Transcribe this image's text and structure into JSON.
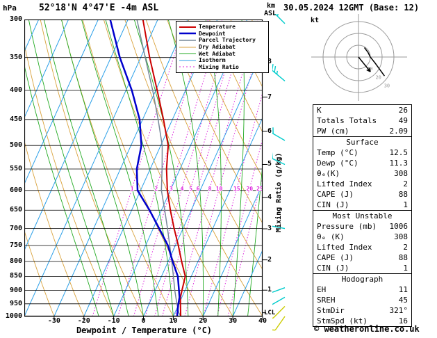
{
  "header": {
    "pressure_unit": "hPa",
    "station": "52°18'N 4°47'E -4m ASL",
    "datetime": "30.05.2024 12GMT (Base: 12)",
    "altitude_unit_line1": "km",
    "altitude_unit_line2": "ASL",
    "hodograph_unit": "kt",
    "copyright": "© weatheronline.co.uk"
  },
  "axes": {
    "xlabel": "Dewpoint / Temperature (°C)",
    "right_label": "Mixing Ratio (g/kg)",
    "pressure_ticks": [
      300,
      350,
      400,
      450,
      500,
      550,
      600,
      650,
      700,
      750,
      800,
      850,
      900,
      950,
      1000
    ],
    "temp_ticks": [
      -30,
      -20,
      -10,
      0,
      10,
      20,
      30,
      40
    ],
    "km_ticks": [
      {
        "km": 8,
        "p": 356
      },
      {
        "km": 7,
        "p": 411
      },
      {
        "km": 6,
        "p": 472
      },
      {
        "km": 5,
        "p": 540
      },
      {
        "km": 4,
        "p": 617
      },
      {
        "km": 3,
        "p": 701
      },
      {
        "km": 2,
        "p": 795
      },
      {
        "km": 1,
        "p": 899
      }
    ],
    "lcl_label": "LCL",
    "lcl_pressure": 985
  },
  "legend": [
    {
      "label": "Temperature",
      "color": "#cc0000",
      "width": 2,
      "dash": ""
    },
    {
      "label": "Dewpoint",
      "color": "#0000cc",
      "width": 2.5,
      "dash": ""
    },
    {
      "label": "Parcel Trajectory",
      "color": "#778899",
      "width": 1.5,
      "dash": ""
    },
    {
      "label": "Dry Adiabat",
      "color": "#d9a23c",
      "width": 1,
      "dash": ""
    },
    {
      "label": "Wet Adiabat",
      "color": "#22aa22",
      "width": 1,
      "dash": ""
    },
    {
      "label": "Isotherm",
      "color": "#2a9fe8",
      "width": 1,
      "dash": ""
    },
    {
      "label": "Mixing Ratio",
      "color": "#dd22dd",
      "width": 1,
      "dash": "2 3"
    }
  ],
  "chart_data": {
    "type": "skewt-logp",
    "station": "52°18'N 4°47'E -4m ASL",
    "valid": "30.05.2024 12GMT (Base: 12)",
    "pressure_axis_hpa": [
      300,
      1000
    ],
    "temp_axis_c": [
      -40,
      40
    ],
    "temperature_profile": [
      {
        "p": 1000,
        "t": 12.5
      },
      {
        "p": 950,
        "t": 10.5
      },
      {
        "p": 925,
        "t": 9.5
      },
      {
        "p": 900,
        "t": 9.0
      },
      {
        "p": 850,
        "t": 8.0
      },
      {
        "p": 800,
        "t": 4.5
      },
      {
        "p": 750,
        "t": 1.0
      },
      {
        "p": 700,
        "t": -3.0
      },
      {
        "p": 650,
        "t": -7.0
      },
      {
        "p": 600,
        "t": -11.0
      },
      {
        "p": 550,
        "t": -14.5
      },
      {
        "p": 500,
        "t": -17.5
      },
      {
        "p": 450,
        "t": -23.0
      },
      {
        "p": 400,
        "t": -29.5
      },
      {
        "p": 350,
        "t": -37.0
      },
      {
        "p": 300,
        "t": -45.0
      }
    ],
    "dewpoint_profile": [
      {
        "p": 1000,
        "t": 11.3
      },
      {
        "p": 950,
        "t": 9.8
      },
      {
        "p": 925,
        "t": 9.2
      },
      {
        "p": 900,
        "t": 8.0
      },
      {
        "p": 850,
        "t": 5.5
      },
      {
        "p": 800,
        "t": 1.5
      },
      {
        "p": 750,
        "t": -2.5
      },
      {
        "p": 700,
        "t": -8.0
      },
      {
        "p": 650,
        "t": -14.0
      },
      {
        "p": 600,
        "t": -21.0
      },
      {
        "p": 550,
        "t": -24.5
      },
      {
        "p": 500,
        "t": -26.5
      },
      {
        "p": 450,
        "t": -31.0
      },
      {
        "p": 400,
        "t": -38.0
      },
      {
        "p": 350,
        "t": -47.0
      },
      {
        "p": 300,
        "t": -56.0
      }
    ],
    "parcel_profile": [
      {
        "p": 1000,
        "t": 12.5
      },
      {
        "p": 985,
        "t": 11.3
      },
      {
        "p": 950,
        "t": 9.3
      },
      {
        "p": 900,
        "t": 6.6
      },
      {
        "p": 850,
        "t": 4.0
      },
      {
        "p": 800,
        "t": 1.2
      },
      {
        "p": 750,
        "t": -1.9
      },
      {
        "p": 700,
        "t": -5.2
      },
      {
        "p": 650,
        "t": -8.9
      },
      {
        "p": 600,
        "t": -13.0
      },
      {
        "p": 550,
        "t": -16.0
      },
      {
        "p": 500,
        "t": -19.5
      },
      {
        "p": 450,
        "t": -24.8
      },
      {
        "p": 400,
        "t": -31.0
      },
      {
        "p": 350,
        "t": -38.5
      },
      {
        "p": 300,
        "t": -47.0
      }
    ],
    "isotherms_c": [
      -120,
      -110,
      -100,
      -90,
      -80,
      -70,
      -60,
      -50,
      -40,
      -30,
      -20,
      -10,
      0,
      10,
      20,
      30,
      40
    ],
    "dry_adiabats_theta_c": [
      -40,
      -30,
      -20,
      -10,
      0,
      10,
      20,
      30,
      40,
      50,
      60,
      70,
      80,
      90,
      100,
      110
    ],
    "wet_adiabats_tw_c": [
      -15,
      -10,
      -5,
      0,
      5,
      10,
      15,
      20,
      25,
      30,
      35
    ],
    "mixing_ratio_lines_gkg": [
      1,
      2,
      3,
      4,
      5,
      6,
      8,
      10,
      15,
      20,
      25
    ],
    "mixing_ratio_label_pressure": 595,
    "wind_barbs": [
      {
        "p": 305,
        "dir": 315,
        "kt": 30,
        "color": "#00cccc"
      },
      {
        "p": 385,
        "dir": 310,
        "kt": 25,
        "color": "#00cccc"
      },
      {
        "p": 490,
        "dir": 300,
        "kt": 20,
        "color": "#00cccc"
      },
      {
        "p": 540,
        "dir": 295,
        "kt": 20,
        "color": "#00cccc"
      },
      {
        "p": 700,
        "dir": 280,
        "kt": 15,
        "color": "#00cccc"
      },
      {
        "p": 890,
        "dir": 250,
        "kt": 10,
        "color": "#00cccc"
      },
      {
        "p": 925,
        "dir": 240,
        "kt": 10,
        "color": "#00cccc"
      },
      {
        "p": 960,
        "dir": 225,
        "kt": 10,
        "color": "#cccc00"
      },
      {
        "p": 1000,
        "dir": 215,
        "kt": 10,
        "color": "#cccc00"
      }
    ],
    "hodograph": {
      "rings_kt": [
        10,
        20,
        30
      ],
      "trace": [
        {
          "u": 5,
          "v": 8
        },
        {
          "u": 8,
          "v": 4
        },
        {
          "u": 10,
          "v": 0
        },
        {
          "u": 14,
          "v": -5
        },
        {
          "u": 22,
          "v": -16
        }
      ],
      "storm_motion": {
        "dir_deg": 321,
        "speed_kt": 16
      }
    }
  },
  "table": {
    "sections": [
      {
        "header": null,
        "rows": [
          [
            "K",
            "26"
          ],
          [
            "Totals Totals",
            "49"
          ],
          [
            "PW (cm)",
            "2.09"
          ]
        ]
      },
      {
        "header": "Surface",
        "rows": [
          [
            "Temp (°C)",
            "12.5"
          ],
          [
            "Dewp (°C)",
            "11.3"
          ],
          [
            "θₑ(K)",
            "308"
          ],
          [
            "Lifted Index",
            "2"
          ],
          [
            "CAPE (J)",
            "88"
          ],
          [
            "CIN (J)",
            "1"
          ]
        ]
      },
      {
        "header": "Most Unstable",
        "rows": [
          [
            "Pressure (mb)",
            "1006"
          ],
          [
            "θₑ (K)",
            "308"
          ],
          [
            "Lifted Index",
            "2"
          ],
          [
            "CAPE (J)",
            "88"
          ],
          [
            "CIN (J)",
            "1"
          ]
        ]
      },
      {
        "header": "Hodograph",
        "rows": [
          [
            "EH",
            "11"
          ],
          [
            "SREH",
            "45"
          ],
          [
            "StmDir",
            "321°"
          ],
          [
            "StmSpd (kt)",
            "16"
          ]
        ]
      }
    ]
  }
}
